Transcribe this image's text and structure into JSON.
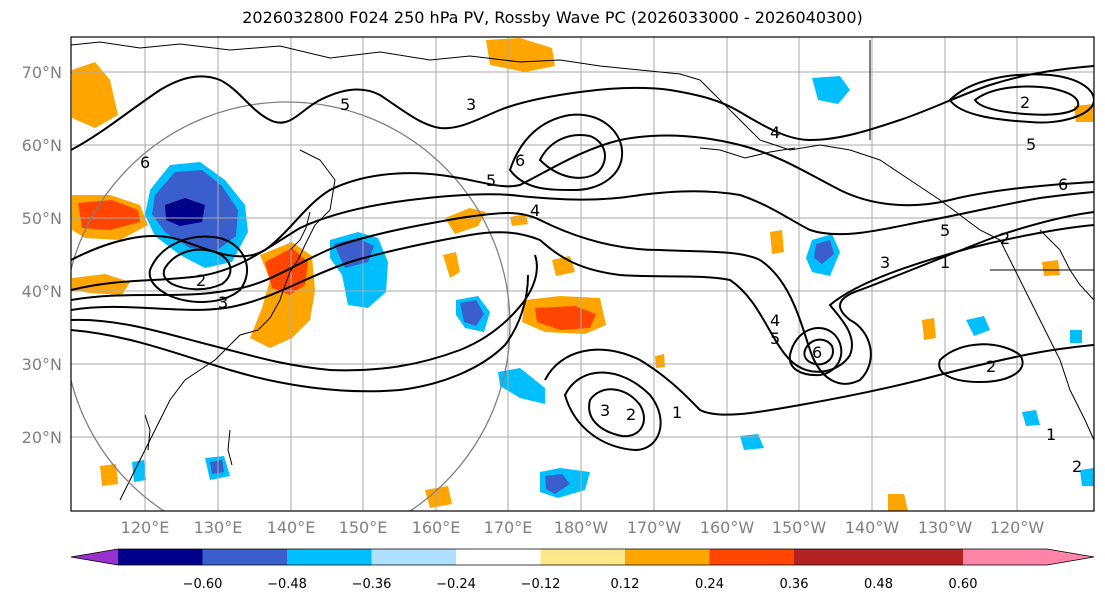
{
  "title": "2026032800 F024 250 hPa PV, Rossby Wave PC (2026033000 - 2026040300)",
  "latitudes": [
    "70°N",
    "60°N",
    "50°N",
    "40°N",
    "30°N",
    "20°N"
  ],
  "longitudes": [
    "120°E",
    "130°E",
    "140°E",
    "150°E",
    "160°E",
    "170°E",
    "180°W",
    "170°W",
    "160°W",
    "150°W",
    "140°W",
    "130°W",
    "120°W"
  ],
  "colorbar": {
    "ticks": [
      "−0.60",
      "−0.48",
      "−0.36",
      "−0.24",
      "−0.12",
      "0.12",
      "0.24",
      "0.36",
      "0.48",
      "0.60"
    ],
    "colors": [
      "#9932cc",
      "#00008b",
      "#3a5fcd",
      "#00bfff",
      "#b0e0ff",
      "#ffffff",
      "#ffe88a",
      "#ffa500",
      "#ff4500",
      "#b22222",
      "#ff85a8"
    ]
  },
  "contour_labels": [
    "1",
    "2",
    "3",
    "4",
    "5",
    "6"
  ]
}
